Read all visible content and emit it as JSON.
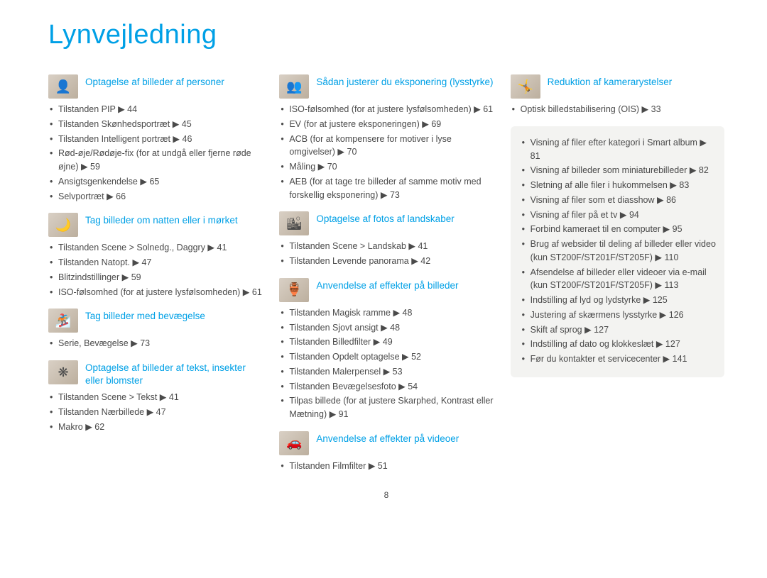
{
  "page": {
    "title": "Lynvejledning",
    "number": "8",
    "colors": {
      "accent": "#00a0e6",
      "text": "#4a4a4a",
      "icon_bg_a": "#d9d0c5",
      "icon_bg_b": "#bcaf9e",
      "box_bg": "#f3f3f1",
      "background": "#ffffff"
    },
    "typography": {
      "title_size_pt": 38,
      "heading_size_pt": 13.5,
      "body_size_pt": 12.5
    }
  },
  "columns": [
    {
      "sections": [
        {
          "icon": "👤",
          "title": "Optagelse af billeder af personer",
          "items": [
            "Tilstanden PIP ▶ 44",
            "Tilstanden Skønhedsportræt ▶ 45",
            "Tilstanden Intelligent portræt ▶ 46",
            "Rød-øje/Rødøje-fix (for at undgå eller fjerne røde øjne) ▶ 59",
            "Ansigtsgenkendelse ▶ 65",
            "Selvportræt ▶ 66"
          ]
        },
        {
          "icon": "🌙",
          "title": "Tag billeder om natten eller i mørket",
          "items": [
            "Tilstanden Scene > Solnedg., Daggry ▶ 41",
            "Tilstanden Natopt. ▶ 47",
            "Blitzindstillinger ▶ 59",
            "ISO-følsomhed (for at justere lysfølsomheden) ▶ 61"
          ]
        },
        {
          "icon": "🏂",
          "title": "Tag billeder med bevægelse",
          "items": [
            "Serie, Bevægelse ▶ 73"
          ]
        },
        {
          "icon": "❋",
          "title": "Optagelse af billeder af tekst, insekter eller blomster",
          "items": [
            "Tilstanden Scene > Tekst ▶ 41",
            "Tilstanden Nærbillede ▶ 47",
            "Makro ▶ 62"
          ]
        }
      ]
    },
    {
      "sections": [
        {
          "icon": "👥",
          "title": "Sådan justerer du eksponering (lysstyrke)",
          "items": [
            "ISO-følsomhed (for at justere lysfølsomheden) ▶ 61",
            "EV (for at justere eksponeringen) ▶ 69",
            "ACB (for at kompensere for motiver i lyse omgivelser) ▶ 70",
            "Måling ▶ 70",
            "AEB (for at tage tre billeder af samme motiv med forskellig eksponering) ▶ 73"
          ]
        },
        {
          "icon": "🏙",
          "title": "Optagelse af fotos af landskaber",
          "items": [
            "Tilstanden Scene > Landskab ▶ 41",
            "Tilstanden Levende panorama ▶ 42"
          ]
        },
        {
          "icon": "🏺",
          "title": "Anvendelse af effekter på billeder",
          "items": [
            "Tilstanden Magisk ramme ▶ 48",
            "Tilstanden Sjovt ansigt ▶ 48",
            "Tilstanden Billedfilter ▶ 49",
            "Tilstanden Opdelt optagelse ▶ 52",
            "Tilstanden Malerpensel ▶ 53",
            "Tilstanden Bevægelsesfoto ▶ 54",
            "Tilpas billede (for at justere Skarphed, Kontrast eller Mætning) ▶ 91"
          ]
        },
        {
          "icon": "🚗",
          "title": "Anvendelse af effekter på videoer",
          "items": [
            "Tilstanden Filmfilter ▶ 51"
          ]
        }
      ]
    },
    {
      "sections": [
        {
          "icon": "🤸",
          "title": "Reduktion af kamerarystelser",
          "items": [
            "Optisk billedstabilisering (OIS) ▶ 33"
          ]
        }
      ],
      "box_items": [
        "Visning af filer efter kategori i Smart album ▶ 81",
        "Visning af billeder som miniaturebilleder ▶ 82",
        "Sletning af alle filer i hukommelsen ▶ 83",
        "Visning af filer som et diasshow ▶ 86",
        "Visning af filer på et tv ▶ 94",
        "Forbind kameraet til en computer ▶ 95",
        "Brug af websider til deling af billeder eller video (kun ST200F/ST201F/ST205F) ▶ 110",
        "Afsendelse af billeder eller videoer via e-mail (kun ST200F/ST201F/ST205F) ▶ 113",
        "Indstilling af lyd og lydstyrke ▶ 125",
        "Justering af skærmens lysstyrke ▶ 126",
        "Skift af sprog ▶ 127",
        "Indstilling af dato og klokkeslæt ▶ 127",
        "Før du kontakter et servicecenter ▶ 141"
      ]
    }
  ]
}
